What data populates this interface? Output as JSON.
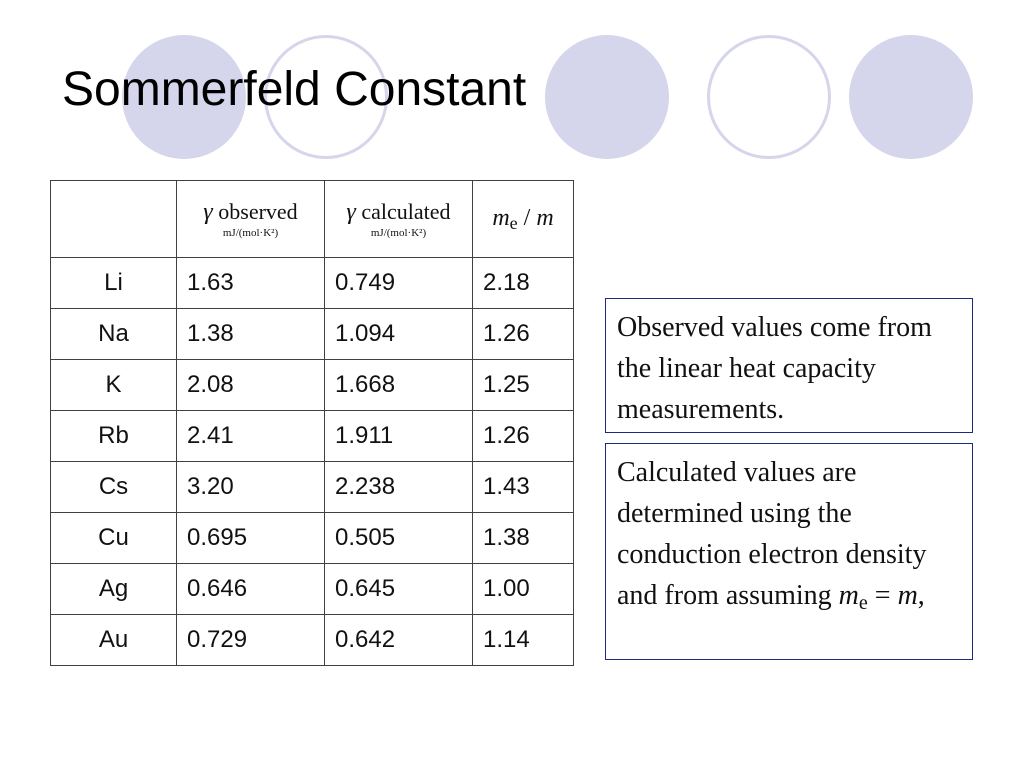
{
  "slide": {
    "title": "Sommerfeld Constant"
  },
  "table": {
    "headers": {
      "gamma_symbol": "γ",
      "observed": "observed",
      "calculated": "calculated",
      "unit": "mJ/(mol·K²)",
      "me": "m",
      "me_sub": "e",
      "me_over": " / ",
      "m": "m"
    },
    "rows": [
      {
        "element": "Li",
        "observed": "1.63",
        "calculated": "0.749",
        "ratio": "2.18"
      },
      {
        "element": "Na",
        "observed": "1.38",
        "calculated": "1.094",
        "ratio": "1.26"
      },
      {
        "element": "K",
        "observed": "2.08",
        "calculated": "1.668",
        "ratio": "1.25"
      },
      {
        "element": "Rb",
        "observed": "2.41",
        "calculated": "1.911",
        "ratio": "1.26"
      },
      {
        "element": "Cs",
        "observed": "3.20",
        "calculated": "2.238",
        "ratio": "1.43"
      },
      {
        "element": "Cu",
        "observed": "0.695",
        "calculated": "0.505",
        "ratio": "1.38"
      },
      {
        "element": "Ag",
        "observed": "0.646",
        "calculated": "0.645",
        "ratio": "1.00"
      },
      {
        "element": "Au",
        "observed": "0.729",
        "calculated": "0.642",
        "ratio": "1.14"
      }
    ]
  },
  "notes": {
    "observed": "Observed values come from the linear heat capacity measurements.",
    "calculated_text": "Calculated values are determined using the conduction electron density and from assuming ",
    "calculated_me": "m",
    "calculated_me_sub": "e",
    "calculated_eq": " = ",
    "calculated_m": "m",
    "calculated_end": ","
  },
  "colors": {
    "circle_fill": "#d5d5eb",
    "border": "#1f2a7a"
  }
}
